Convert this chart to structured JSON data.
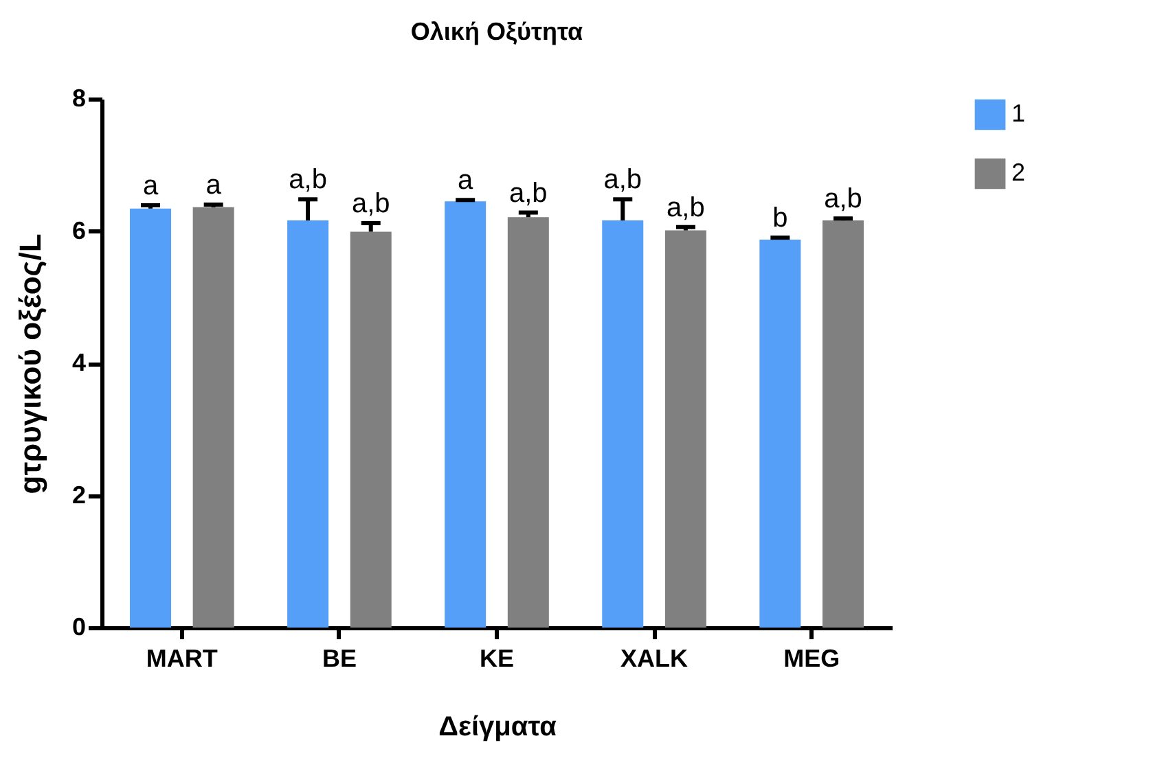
{
  "chart_data": {
    "type": "bar",
    "title": "Ολική Οξύτητα",
    "xlabel": "Δείγματα",
    "ylabel": "gτρυγικού οξέος/L",
    "categories": [
      "MART",
      "BE",
      "KE",
      "XALK",
      "MEG"
    ],
    "series": [
      {
        "name": "1",
        "color": "#559ff8",
        "values": [
          6.34,
          6.16,
          6.45,
          6.16,
          5.87
        ],
        "errors": [
          [
            6.34,
            6.39
          ],
          [
            6.16,
            6.48
          ],
          [
            6.45,
            6.47
          ],
          [
            6.16,
            6.48
          ],
          [
            5.87,
            5.9
          ]
        ],
        "value_labels": [
          "a",
          "a,b",
          "a",
          "a,b",
          "b"
        ]
      },
      {
        "name": "2",
        "color": "#808080",
        "values": [
          6.36,
          5.99,
          6.21,
          6.01,
          6.16
        ],
        "errors": [
          [
            6.36,
            6.4
          ],
          [
            5.99,
            6.12
          ],
          [
            6.21,
            6.28
          ],
          [
            6.01,
            6.06
          ],
          [
            6.16,
            6.19
          ]
        ],
        "value_labels": [
          "a",
          "a,b",
          "a,b",
          "a,b",
          "a,b"
        ]
      }
    ],
    "ylim": [
      0,
      8
    ],
    "yticks": [
      0,
      2,
      4,
      6,
      8
    ],
    "grid": false,
    "legend": "top right"
  }
}
